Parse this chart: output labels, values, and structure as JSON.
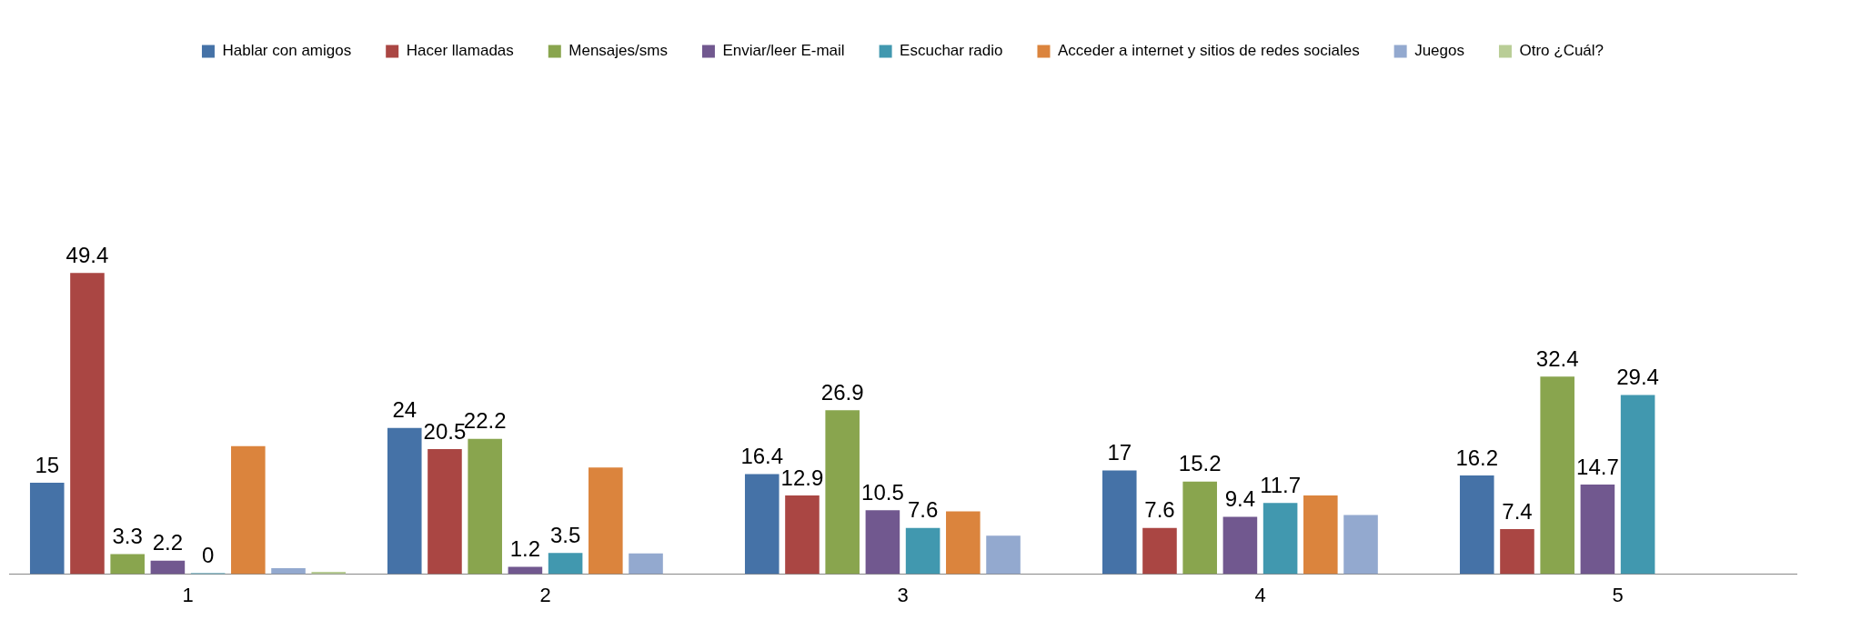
{
  "chart_data": {
    "type": "bar",
    "categories": [
      "1",
      "2",
      "3",
      "4",
      "5"
    ],
    "legend": "top",
    "series": [
      {
        "name": "Hablar con amigos",
        "color": "#4572a7",
        "values": [
          15,
          24,
          16.4,
          17,
          16.2
        ],
        "value_labels": [
          "15",
          "24",
          "16.4",
          "17",
          "16.2"
        ]
      },
      {
        "name": "Hacer llamadas",
        "color": "#aa4643",
        "values": [
          49.4,
          20.5,
          12.9,
          7.6,
          7.4
        ],
        "value_labels": [
          "49.4",
          "20.5",
          "12.9",
          "7.6",
          "7.4"
        ]
      },
      {
        "name": "Mensajes/sms",
        "color": "#89a54e",
        "values": [
          3.3,
          22.2,
          26.9,
          15.2,
          32.4
        ],
        "value_labels": [
          "3.3",
          "22.2",
          "26.9",
          "15.2",
          "32.4"
        ]
      },
      {
        "name": "Enviar/leer E-mail",
        "color": "#71588f",
        "values": [
          2.2,
          1.2,
          10.5,
          9.4,
          14.7
        ],
        "value_labels": [
          "2.2",
          "1.2",
          "10.5",
          "9.4",
          "14.7"
        ]
      },
      {
        "name": "Escuchar radio",
        "color": "#4198af",
        "values": [
          0,
          3.5,
          7.6,
          11.7,
          29.4
        ],
        "value_labels": [
          "0",
          "3.5",
          "7.6",
          "11.7",
          "29.4"
        ]
      },
      {
        "name": "Acceder a internet y sitios de redes sociales",
        "color": "#db843d",
        "values": [
          21,
          17.5,
          10.3,
          12.9,
          null
        ]
      },
      {
        "name": "Juegos",
        "color": "#93a9cf",
        "values": [
          1,
          3.4,
          6.3,
          9.7,
          null
        ]
      },
      {
        "name": "Otro ¿Cuál?",
        "color": "#b9cd96",
        "values": [
          0.4,
          null,
          null,
          null,
          null
        ]
      }
    ]
  }
}
